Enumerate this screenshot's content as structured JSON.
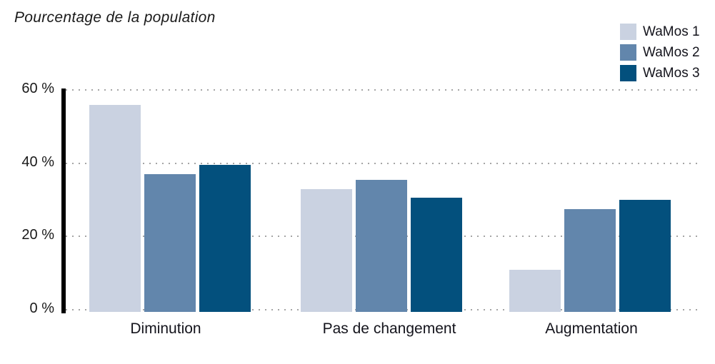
{
  "chart_data": {
    "type": "bar",
    "title": "Pourcentage de la population",
    "categories": [
      "Diminution",
      "Pas de changement",
      "Augmentation"
    ],
    "series": [
      {
        "name": "WaMos 1",
        "color": "#cad2e1",
        "values": [
          56,
          33,
          11
        ]
      },
      {
        "name": "WaMos 2",
        "color": "#6286ac",
        "values": [
          37,
          35.5,
          27.5
        ]
      },
      {
        "name": "WaMos 3",
        "color": "#03507d",
        "values": [
          39.5,
          30.5,
          30
        ]
      }
    ],
    "y_axis": {
      "ticks": [
        0,
        20,
        40,
        60
      ],
      "tick_labels": [
        "0 %",
        "20 %",
        "40 %",
        "60 %"
      ],
      "max": 60
    },
    "legend_position": "top-right",
    "grid": "dotted-horizontal",
    "axis_color": "#000000",
    "grid_color": "#a5a5a5",
    "text_color": "#1a1a1a",
    "background_color": "#ffffff"
  }
}
